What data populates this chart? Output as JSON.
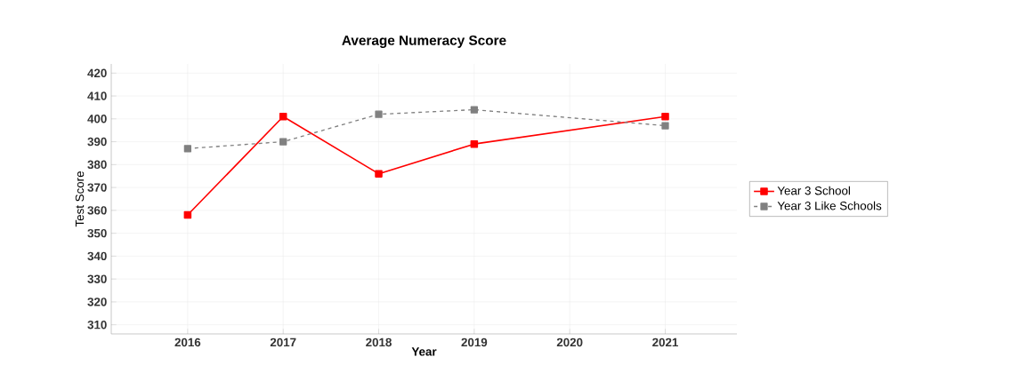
{
  "chart_data": {
    "type": "line",
    "title": "Average Numeracy Score",
    "xlabel": "Year",
    "ylabel": "Test Score",
    "xlim": [
      2015.2,
      2021.75
    ],
    "xticks": [
      2016,
      2017,
      2018,
      2019,
      2020,
      2021
    ],
    "ylim": [
      306,
      424
    ],
    "yticks": [
      310,
      320,
      330,
      340,
      350,
      360,
      370,
      380,
      390,
      400,
      410,
      420
    ],
    "grid": true,
    "legend": "right",
    "marker": "square",
    "series": [
      {
        "name": "Year 3 School",
        "color": "#ff0000",
        "line_style": "solid",
        "x": [
          2016,
          2017,
          2018,
          2019,
          2021
        ],
        "values": [
          358,
          401,
          376,
          389,
          401
        ]
      },
      {
        "name": "Year 3 Like Schools",
        "color": "#808080",
        "line_style": "dashed",
        "x": [
          2016,
          2017,
          2018,
          2019,
          2021
        ],
        "values": [
          387,
          390,
          402,
          404,
          397
        ]
      }
    ]
  }
}
